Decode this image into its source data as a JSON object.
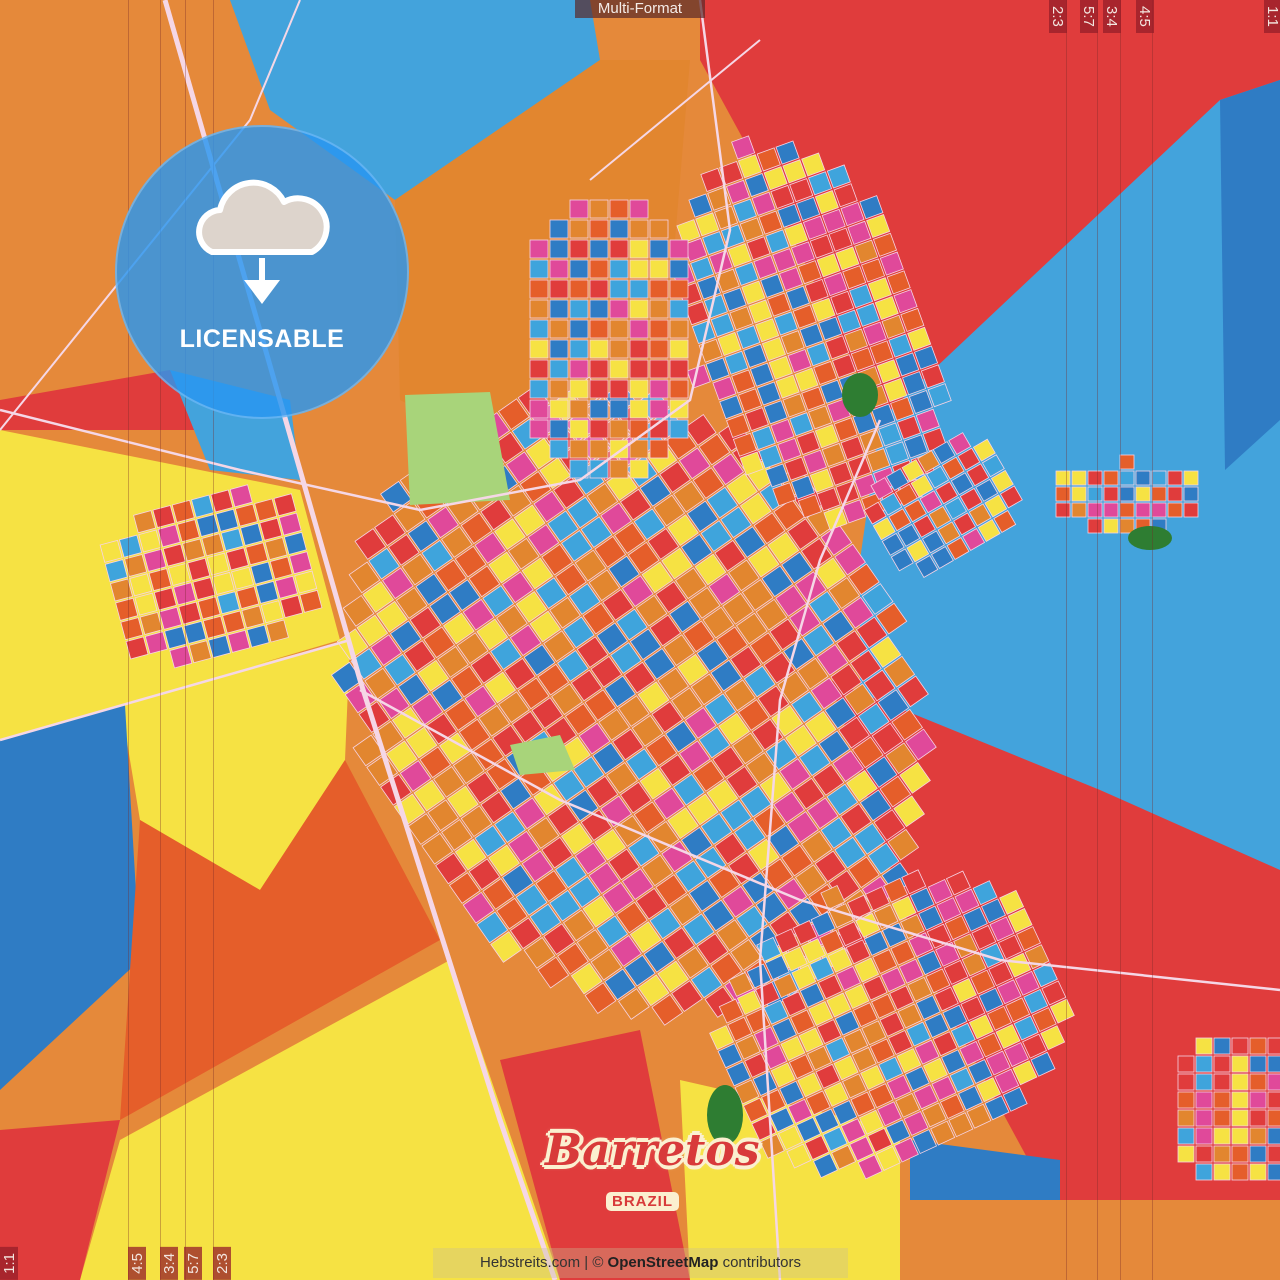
{
  "header": {
    "format_label": "Multi-Format"
  },
  "aspect_ratios_top": [
    "2:3",
    "5:7",
    "3:4",
    "4:5",
    "1:1"
  ],
  "aspect_ratios_bottom": [
    "1:1",
    "4:5",
    "3:4",
    "5:7",
    "2:3"
  ],
  "badge": {
    "label": "LICENSABLE",
    "icon": "cloud-download-icon"
  },
  "map": {
    "city": "Barretos",
    "country": "BRAZIL",
    "palette": [
      "#e03c3c",
      "#f6e243",
      "#3fa4dc",
      "#e2862f",
      "#e0499a",
      "#2f7cc4",
      "#e55e2a"
    ],
    "park_color": "#a8d47a",
    "forest_color": "#2e7d32"
  },
  "attribution": {
    "site": "Hebstreits.com",
    "separator": "|",
    "copyright": "©",
    "osm": "OpenStreetMap",
    "suffix": "contributors"
  }
}
